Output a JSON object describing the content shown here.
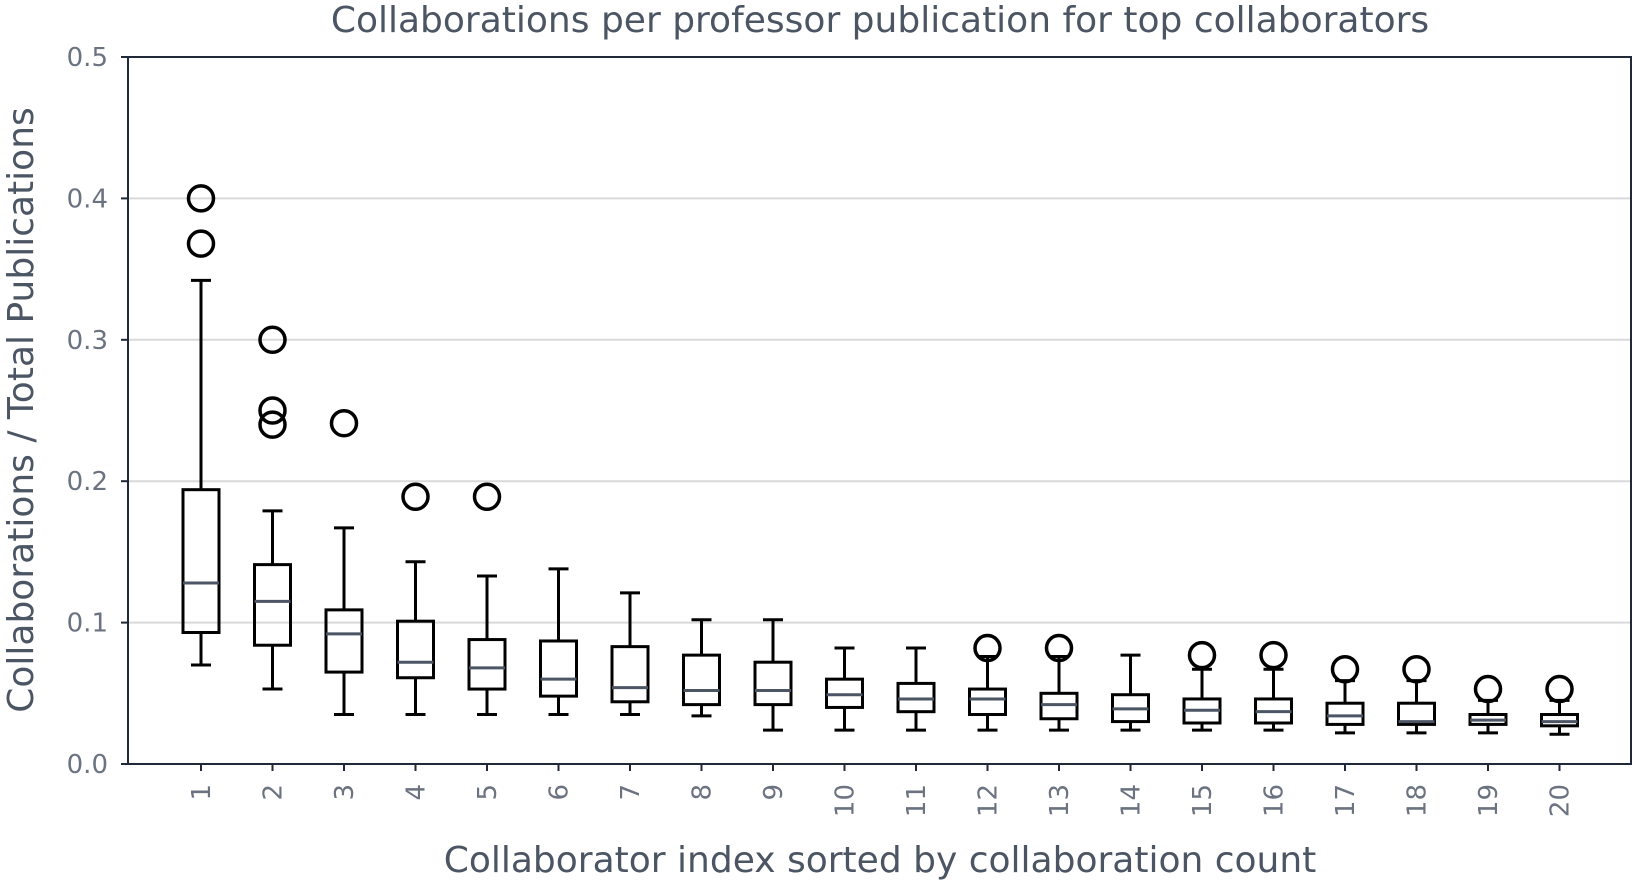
{
  "chart_data": {
    "type": "boxplot",
    "title": "Collaborations per professor publication for top collaborators",
    "xlabel": "Collaborator index sorted by collaboration count",
    "ylabel": "Collaborations / Total Publications",
    "ylim": [
      0.0,
      0.5
    ],
    "yticks": [
      "0.0",
      "0.1",
      "0.2",
      "0.3",
      "0.4",
      "0.5"
    ],
    "grid": "horizontal",
    "categories": [
      "1",
      "2",
      "3",
      "4",
      "5",
      "6",
      "7",
      "8",
      "9",
      "10",
      "11",
      "12",
      "13",
      "14",
      "15",
      "16",
      "17",
      "18",
      "19",
      "20"
    ],
    "boxes": [
      {
        "whislo": 0.07,
        "q1": 0.093,
        "med": 0.128,
        "q3": 0.194,
        "whishi": 0.342,
        "fliers": [
          0.368,
          0.4
        ]
      },
      {
        "whislo": 0.053,
        "q1": 0.084,
        "med": 0.115,
        "q3": 0.141,
        "whishi": 0.179,
        "fliers": [
          0.24,
          0.25,
          0.3
        ]
      },
      {
        "whislo": 0.035,
        "q1": 0.065,
        "med": 0.092,
        "q3": 0.109,
        "whishi": 0.167,
        "fliers": [
          0.241
        ]
      },
      {
        "whislo": 0.035,
        "q1": 0.061,
        "med": 0.072,
        "q3": 0.101,
        "whishi": 0.143,
        "fliers": [
          0.189
        ]
      },
      {
        "whislo": 0.035,
        "q1": 0.053,
        "med": 0.068,
        "q3": 0.088,
        "whishi": 0.133,
        "fliers": [
          0.189
        ]
      },
      {
        "whislo": 0.035,
        "q1": 0.048,
        "med": 0.06,
        "q3": 0.087,
        "whishi": 0.138,
        "fliers": []
      },
      {
        "whislo": 0.035,
        "q1": 0.044,
        "med": 0.054,
        "q3": 0.083,
        "whishi": 0.121,
        "fliers": []
      },
      {
        "whislo": 0.034,
        "q1": 0.042,
        "med": 0.052,
        "q3": 0.077,
        "whishi": 0.102,
        "fliers": []
      },
      {
        "whislo": 0.024,
        "q1": 0.042,
        "med": 0.052,
        "q3": 0.072,
        "whishi": 0.102,
        "fliers": []
      },
      {
        "whislo": 0.024,
        "q1": 0.04,
        "med": 0.049,
        "q3": 0.06,
        "whishi": 0.082,
        "fliers": []
      },
      {
        "whislo": 0.024,
        "q1": 0.037,
        "med": 0.046,
        "q3": 0.057,
        "whishi": 0.082,
        "fliers": []
      },
      {
        "whislo": 0.024,
        "q1": 0.035,
        "med": 0.046,
        "q3": 0.053,
        "whishi": 0.076,
        "fliers": [
          0.082
        ]
      },
      {
        "whislo": 0.024,
        "q1": 0.032,
        "med": 0.042,
        "q3": 0.05,
        "whishi": 0.076,
        "fliers": [
          0.082
        ]
      },
      {
        "whislo": 0.024,
        "q1": 0.03,
        "med": 0.039,
        "q3": 0.049,
        "whishi": 0.077,
        "fliers": []
      },
      {
        "whislo": 0.024,
        "q1": 0.029,
        "med": 0.038,
        "q3": 0.046,
        "whishi": 0.067,
        "fliers": [
          0.077
        ]
      },
      {
        "whislo": 0.024,
        "q1": 0.029,
        "med": 0.037,
        "q3": 0.046,
        "whishi": 0.067,
        "fliers": [
          0.077
        ]
      },
      {
        "whislo": 0.022,
        "q1": 0.028,
        "med": 0.034,
        "q3": 0.043,
        "whishi": 0.059,
        "fliers": [
          0.067
        ]
      },
      {
        "whislo": 0.022,
        "q1": 0.028,
        "med": 0.03,
        "q3": 0.043,
        "whishi": 0.059,
        "fliers": [
          0.067
        ]
      },
      {
        "whislo": 0.022,
        "q1": 0.028,
        "med": 0.031,
        "q3": 0.035,
        "whishi": 0.045,
        "fliers": [
          0.053
        ]
      },
      {
        "whislo": 0.021,
        "q1": 0.027,
        "med": 0.03,
        "q3": 0.035,
        "whishi": 0.045,
        "fliers": [
          0.053
        ]
      }
    ]
  }
}
